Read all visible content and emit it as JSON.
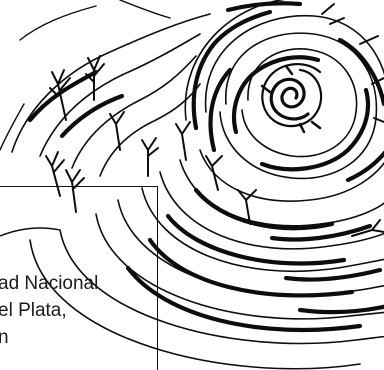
{
  "illustration": {
    "icon": "swirling-hands-artwork",
    "ink_color": "#0d0d0d",
    "paper_color": "#ffffff"
  },
  "caption": {
    "lines": [
      "ad Nacional",
      "el Plata,",
      "n"
    ]
  }
}
